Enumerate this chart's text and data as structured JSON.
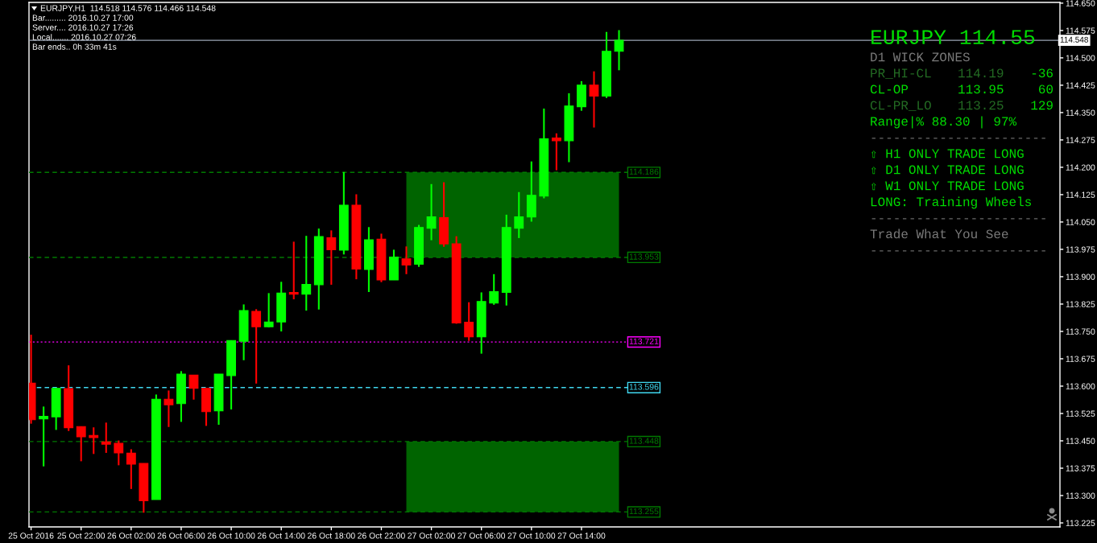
{
  "chart_data": {
    "type": "candlestick",
    "title": "EURJPY,H1  114.518 114.576 114.466 114.548",
    "x": [
      "2016-10-25T18:00",
      "2016-10-25T19:00",
      "2016-10-25T20:00",
      "2016-10-25T21:00",
      "2016-10-25T22:00",
      "2016-10-25T23:00",
      "2016-10-26T00:00",
      "2016-10-26T01:00",
      "2016-10-26T02:00",
      "2016-10-26T03:00",
      "2016-10-26T04:00",
      "2016-10-26T05:00",
      "2016-10-26T06:00",
      "2016-10-26T07:00",
      "2016-10-26T08:00",
      "2016-10-26T09:00",
      "2016-10-26T10:00",
      "2016-10-26T11:00",
      "2016-10-26T12:00",
      "2016-10-26T13:00",
      "2016-10-26T14:00",
      "2016-10-26T15:00",
      "2016-10-26T16:00",
      "2016-10-26T17:00",
      "2016-10-26T18:00",
      "2016-10-26T19:00",
      "2016-10-26T20:00",
      "2016-10-26T21:00",
      "2016-10-26T22:00",
      "2016-10-26T23:00",
      "2016-10-27T00:00",
      "2016-10-27T01:00",
      "2016-10-27T02:00",
      "2016-10-27T03:00",
      "2016-10-27T04:00",
      "2016-10-27T05:00",
      "2016-10-27T06:00",
      "2016-10-27T07:00",
      "2016-10-27T08:00",
      "2016-10-27T09:00",
      "2016-10-27T10:00",
      "2016-10-27T11:00",
      "2016-10-27T12:00",
      "2016-10-27T13:00",
      "2016-10-27T14:00",
      "2016-10-27T15:00",
      "2016-10-27T16:00",
      "2016-10-27T17:00"
    ],
    "ohlc": [
      [
        113.608,
        113.741,
        113.497,
        113.508
      ],
      [
        113.51,
        113.544,
        113.38,
        113.517
      ],
      [
        113.516,
        113.594,
        113.48,
        113.594
      ],
      [
        113.593,
        113.657,
        113.477,
        113.486
      ],
      [
        113.489,
        113.489,
        113.394,
        113.461
      ],
      [
        113.465,
        113.487,
        113.414,
        113.459
      ],
      [
        113.447,
        113.5,
        113.417,
        113.441
      ],
      [
        113.443,
        113.451,
        113.383,
        113.417
      ],
      [
        113.416,
        113.427,
        113.318,
        113.386
      ],
      [
        113.388,
        113.388,
        113.253,
        113.286
      ],
      [
        113.289,
        113.577,
        113.289,
        113.564
      ],
      [
        113.564,
        113.588,
        113.488,
        113.549
      ],
      [
        113.552,
        113.641,
        113.502,
        113.633
      ],
      [
        113.63,
        113.63,
        113.563,
        113.594
      ],
      [
        113.594,
        113.594,
        113.491,
        113.53
      ],
      [
        113.532,
        113.633,
        113.494,
        113.633
      ],
      [
        113.629,
        113.725,
        113.536,
        113.725
      ],
      [
        113.723,
        113.824,
        113.671,
        113.807
      ],
      [
        113.805,
        113.811,
        113.607,
        113.763
      ],
      [
        113.763,
        113.855,
        113.761,
        113.776
      ],
      [
        113.776,
        113.886,
        113.75,
        113.855
      ],
      [
        113.857,
        113.996,
        113.838,
        113.852
      ],
      [
        113.852,
        114.012,
        113.807,
        113.879
      ],
      [
        113.878,
        114.032,
        113.81,
        114.01
      ],
      [
        114.007,
        114.027,
        113.878,
        113.974
      ],
      [
        113.973,
        114.187,
        113.961,
        114.096
      ],
      [
        114.096,
        114.126,
        113.893,
        113.921
      ],
      [
        113.92,
        114.036,
        113.858,
        114.001
      ],
      [
        114.003,
        114.018,
        113.885,
        113.891
      ],
      [
        113.891,
        113.974,
        113.891,
        113.954
      ],
      [
        113.949,
        113.983,
        113.907,
        113.932
      ],
      [
        113.934,
        114.042,
        113.927,
        114.035
      ],
      [
        114.033,
        114.154,
        114.0,
        114.064
      ],
      [
        114.062,
        114.159,
        113.982,
        113.99
      ],
      [
        113.99,
        114.011,
        113.771,
        113.773
      ],
      [
        113.775,
        113.83,
        113.724,
        113.735
      ],
      [
        113.735,
        113.857,
        113.689,
        113.832
      ],
      [
        113.828,
        113.907,
        113.823,
        113.859
      ],
      [
        113.857,
        114.07,
        113.821,
        114.035
      ],
      [
        114.033,
        114.132,
        114.006,
        114.064
      ],
      [
        114.064,
        114.216,
        114.051,
        114.123
      ],
      [
        114.121,
        114.361,
        114.115,
        114.278
      ],
      [
        114.28,
        114.293,
        114.192,
        114.273
      ],
      [
        114.273,
        114.403,
        114.214,
        114.368
      ],
      [
        114.366,
        114.436,
        114.355,
        114.425
      ],
      [
        114.425,
        114.463,
        114.309,
        114.395
      ],
      [
        114.395,
        114.571,
        114.39,
        114.518
      ],
      [
        114.518,
        114.576,
        114.466,
        114.548
      ]
    ],
    "colors": [
      "#ff0000",
      "#00ff00",
      "#00ff00",
      "#ff0000",
      "#ff0000",
      "#ff0000",
      "#ff0000",
      "#ff0000",
      "#ff0000",
      "#ff0000",
      "#00ff00",
      "#ff0000",
      "#00ff00",
      "#ff0000",
      "#ff0000",
      "#00ff00",
      "#00ff00",
      "#00ff00",
      "#ff0000",
      "#00ff00",
      "#00ff00",
      "#ff0000",
      "#00ff00",
      "#00ff00",
      "#ff0000",
      "#00ff00",
      "#ff0000",
      "#00ff00",
      "#ff0000",
      "#00ff00",
      "#ff0000",
      "#00ff00",
      "#00ff00",
      "#ff0000",
      "#ff0000",
      "#ff0000",
      "#00ff00",
      "#00ff00",
      "#00ff00",
      "#00ff00",
      "#00ff00",
      "#00ff00",
      "#ff0000",
      "#00ff00",
      "#00ff00",
      "#ff0000",
      "#00ff00",
      "#00ff00"
    ],
    "xlim": [
      "2016-10-25T17:50",
      "2016-10-29T04:15"
    ],
    "xticks": [
      {
        "value": "2016-10-25T18:00",
        "label": "25 Oct 2016"
      },
      {
        "value": "2016-10-25T22:00",
        "label": "25 Oct 22:00"
      },
      {
        "value": "2016-10-26T02:00",
        "label": "26 Oct 02:00"
      },
      {
        "value": "2016-10-26T06:00",
        "label": "26 Oct 06:00"
      },
      {
        "value": "2016-10-26T10:00",
        "label": "26 Oct 10:00"
      },
      {
        "value": "2016-10-26T14:00",
        "label": "26 Oct 14:00"
      },
      {
        "value": "2016-10-26T18:00",
        "label": "26 Oct 18:00"
      },
      {
        "value": "2016-10-26T22:00",
        "label": "26 Oct 22:00"
      },
      {
        "value": "2016-10-27T02:00",
        "label": "27 Oct 02:00"
      },
      {
        "value": "2016-10-27T06:00",
        "label": "27 Oct 06:00"
      },
      {
        "value": "2016-10-27T10:00",
        "label": "27 Oct 10:00"
      },
      {
        "value": "2016-10-27T14:00",
        "label": "27 Oct 14:00"
      }
    ],
    "ylim": [
      113.214,
      114.652
    ],
    "yticks": [
      113.225,
      {
        "value": 113.3,
        "label": "113.300"
      },
      113.375,
      {
        "value": 113.45,
        "label": "113.450"
      },
      113.525,
      {
        "value": 113.6,
        "label": "113.600"
      },
      113.675,
      {
        "value": 113.75,
        "label": "113.750"
      },
      113.825,
      {
        "value": 113.9,
        "label": "113.900"
      },
      113.975,
      {
        "value": 114.05,
        "label": "114.050"
      },
      114.125,
      {
        "value": 114.2,
        "label": "114.200"
      },
      114.275,
      {
        "value": 114.35,
        "label": "114.350"
      },
      114.425,
      {
        "value": 114.5,
        "label": "114.500"
      },
      114.575,
      {
        "value": 114.65,
        "label": "114.650"
      }
    ],
    "ref_lines": [
      {
        "axis": "y",
        "value": 114.548,
        "label": "114.548",
        "color": "#9aa4b4",
        "line_style": "solid"
      },
      {
        "axis": "y",
        "value": 114.186,
        "label": "114.186",
        "color": "#007a00",
        "line_style": "dashed"
      },
      {
        "axis": "y",
        "value": 113.953,
        "label": "113.953",
        "color": "#007a00",
        "line_style": "dashed"
      },
      {
        "axis": "y",
        "value": 113.721,
        "label": "113.721",
        "color": "#ff00ff",
        "line_style": "dotted"
      },
      {
        "axis": "y",
        "value": 113.596,
        "label": "113.596",
        "color": "#40d8f0",
        "line_style": "dashed"
      },
      {
        "axis": "y",
        "value": 113.448,
        "label": "113.448",
        "color": "#007a00",
        "line_style": "dashed"
      },
      {
        "axis": "y",
        "value": 113.255,
        "label": "113.255",
        "color": "#007a00",
        "line_style": "dashed"
      }
    ],
    "bands": [
      {
        "axis": "y",
        "from": 113.953,
        "to": 114.186,
        "color": "#006400"
      },
      {
        "axis": "y",
        "from": 113.255,
        "to": 113.448,
        "color": "#006400"
      }
    ],
    "annotations": [
      "Bar......... 2016.10.27 17:00",
      "Server.... 2016.10.27 17:26",
      "Local....... 2016.10.27 07:26",
      "Bar ends.. 0h 33m 41s",
      "EURJPY 114.55",
      "D1 WICK ZONES",
      "PR_HI-CL",
      "114.19",
      "-36",
      "CL-OP",
      "113.95",
      "60",
      "CL-PR_LO",
      "113.25",
      "129",
      "Range|% 88.30 | 97%",
      "-----------------------",
      "⇧ H1 ONLY TRADE LONG",
      "⇧ D1 ONLY TRADE LONG",
      "⇧ W1 ONLY TRADE LONG",
      "LONG: Training Wheels",
      "-----------------------",
      "Trade What You See",
      "-----------------------"
    ]
  }
}
